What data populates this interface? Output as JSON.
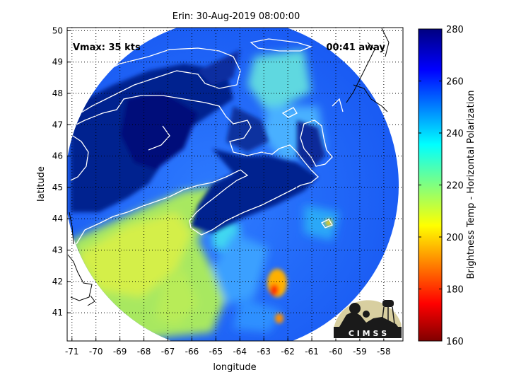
{
  "figure": {
    "title": "Erin: 30-Aug-2019 08:00:00",
    "vmax_label": "Vmax: 35 kts",
    "time_away_label": "00:41 away",
    "xlabel": "longitude",
    "ylabel": "latitude",
    "colorbar_label": "Brightness Temp - Horizontal Polarization",
    "logo_text": "C I M S S"
  },
  "chart_data": {
    "type": "heatmap",
    "xlim": [
      -71.2,
      -57.2
    ],
    "ylim": [
      40.1,
      50.1
    ],
    "x_ticks": [
      -71,
      -70,
      -69,
      -68,
      -67,
      -66,
      -65,
      -64,
      -63,
      -62,
      -61,
      -60,
      -59,
      -58
    ],
    "y_ticks": [
      41,
      42,
      43,
      44,
      45,
      46,
      47,
      48,
      49,
      50
    ],
    "grid": true,
    "colorbar": {
      "vmin": 160,
      "vmax": 280,
      "ticks": [
        160,
        180,
        200,
        220,
        240,
        260,
        280
      ],
      "colormap": "jet",
      "position": "right"
    },
    "swath": {
      "center_lon": -64.4,
      "center_lat": 45.0
    }
  },
  "colors": {
    "coastline": "#ffffff",
    "outside_coastline": "#000000",
    "land_cold": "#00208f",
    "ocean_cool": "#1e5cff",
    "shelf_warm": "#a8e860",
    "warm_cell": "#ff3000"
  }
}
